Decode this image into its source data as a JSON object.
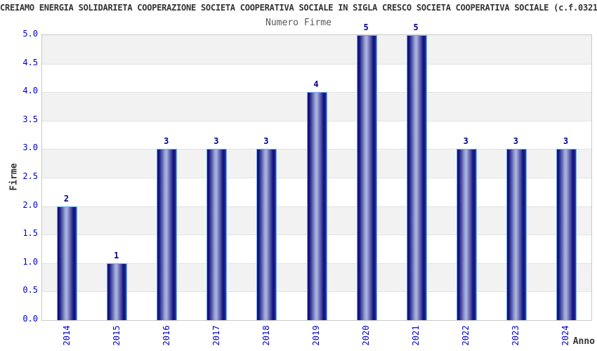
{
  "chart_data": {
    "type": "bar",
    "title": "CREIAMO ENERGIA SOLIDARIETA COOPERAZIONE SOCIETA COOPERATIVA SOCIALE IN SIGLA CRESCO SOCIETA COOPERATIVA SOCIALE (c.f.0321",
    "subtitle": "Numero Firme",
    "categories": [
      "2014",
      "2015",
      "2016",
      "2017",
      "2018",
      "2019",
      "2020",
      "2021",
      "2022",
      "2023",
      "2024"
    ],
    "values": [
      2,
      1,
      3,
      3,
      3,
      4,
      5,
      5,
      3,
      3,
      3
    ],
    "xlabel": "Anno",
    "ylabel": "Firme",
    "ylim": [
      0,
      5
    ],
    "ytick_step": 0.5,
    "grid": true,
    "legend": "none",
    "colors": {
      "tick_label": "#0000cc",
      "bar_value_label": "#000080",
      "bar_dark": "#10107c",
      "bar_light": "#aeb6e0",
      "bar_border": "#74b0f2",
      "band_gray": "#f2f2f2",
      "band_white": "#ffffff",
      "gridline": "#e2e2e2",
      "plot_border": "#c9c9c9",
      "title_color": "#333333",
      "subtitle_color": "#595959"
    }
  }
}
